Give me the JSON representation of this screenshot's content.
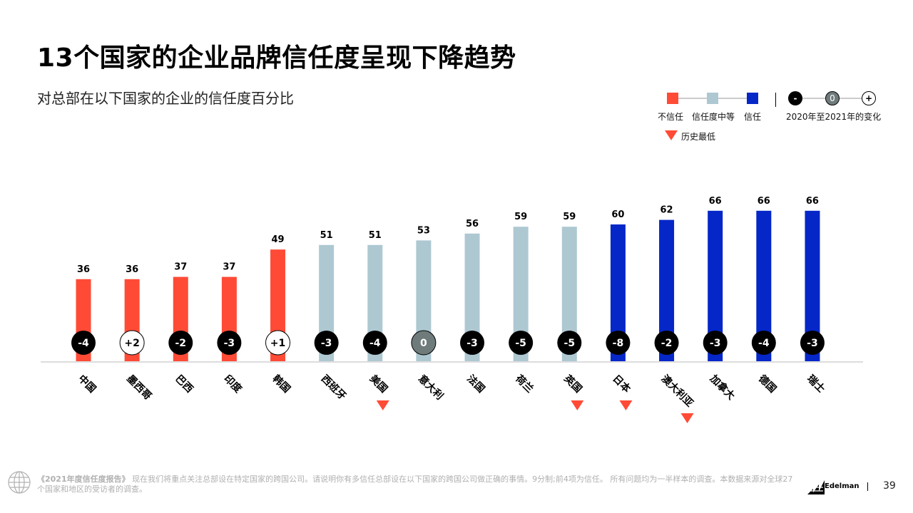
{
  "header": {
    "title": "13个国家的企业品牌信任度呈现下降趋势",
    "subtitle": "对总部在以下国家的企业的信任度百分比"
  },
  "legend": {
    "distrust_label": "不信任",
    "neutral_label": "信任度中等",
    "trust_label": "信任",
    "change_label": "2020年至2021年的变化",
    "change_minus": "-",
    "change_zero": "0",
    "change_plus": "+",
    "history_low_label": "历史最低"
  },
  "colors": {
    "distrust": "#ff4b36",
    "neutral": "#aec8d2",
    "trust": "#0527c8",
    "change_negative": "#000000",
    "change_zero": "#6f7b7b",
    "change_positive": "#ffffff",
    "marker": "#ff4b36"
  },
  "chart_data": {
    "type": "bar",
    "title": "13个国家的企业品牌信任度呈现下降趋势",
    "ylabel": "对总部在以下国家的企业的信任度百分比",
    "ylim": [
      0,
      100
    ],
    "categories": [
      "中国",
      "墨西哥",
      "巴西",
      "印度",
      "韩国",
      "西班牙",
      "美国",
      "意大利",
      "法国",
      "荷兰",
      "英国",
      "日本",
      "澳大利亚",
      "加拿大",
      "德国",
      "瑞士"
    ],
    "values": [
      36,
      36,
      37,
      37,
      49,
      51,
      51,
      53,
      56,
      59,
      59,
      60,
      62,
      66,
      66,
      66
    ],
    "trust_level": [
      "distrust",
      "distrust",
      "distrust",
      "distrust",
      "distrust",
      "neutral",
      "neutral",
      "neutral",
      "neutral",
      "neutral",
      "neutral",
      "trust",
      "trust",
      "trust",
      "trust",
      "trust"
    ],
    "change_labels": [
      "-4",
      "+2",
      "-2",
      "-3",
      "+1",
      "-3",
      "-4",
      "0",
      "-3",
      "-5",
      "-5",
      "-8",
      "-2",
      "-3",
      "-4",
      "-3"
    ],
    "historic_low": [
      false,
      false,
      false,
      false,
      false,
      false,
      true,
      false,
      false,
      false,
      true,
      true,
      true,
      false,
      false,
      false
    ]
  },
  "footer": {
    "report_name": "《2021年度信任度报告》",
    "note": "现在我们将重点关注总部设在特定国家的跨国公司。请说明你有多信任总部设在以下国家的跨国公司做正确的事情。9分制;前4项为信任。 所有问题均为一半样本的调查。本数据来源对全球27个国家和地区的受访者的调查。",
    "brand": "Edelman",
    "page_number": "39"
  }
}
